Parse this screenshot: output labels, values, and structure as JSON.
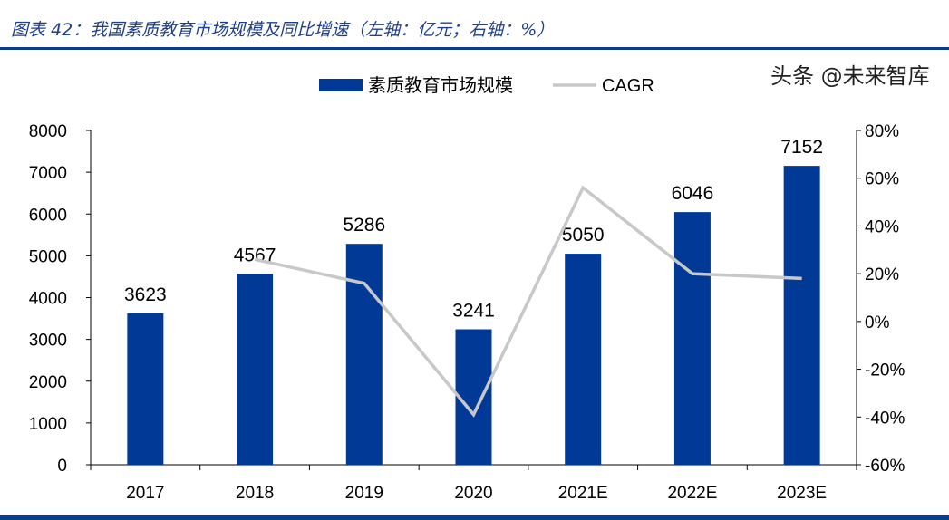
{
  "title": "图表 42：我国素质教育市场规模及同比增速（左轴：亿元；右轴：%）",
  "watermark": "头条 @未来智库",
  "chart_data": {
    "type": "bar+line",
    "categories": [
      "2017",
      "2018",
      "2019",
      "2020",
      "2021E",
      "2022E",
      "2023E"
    ],
    "series": [
      {
        "name": "素质教育市场规模",
        "type": "bar",
        "axis": "left",
        "color": "#003a96",
        "values": [
          3623,
          4567,
          5286,
          3241,
          5050,
          6046,
          7152
        ]
      },
      {
        "name": "CAGR",
        "type": "line",
        "axis": "right",
        "color": "#c8c8c8",
        "values": [
          null,
          26,
          16,
          -39,
          56,
          20,
          18
        ]
      }
    ],
    "left_axis": {
      "ylim": [
        0,
        8000
      ],
      "ticks": [
        "0",
        "1000",
        "2000",
        "3000",
        "4000",
        "5000",
        "6000",
        "7000",
        "8000"
      ]
    },
    "right_axis": {
      "ylim": [
        -60,
        80
      ],
      "ticks": [
        "-60%",
        "-40%",
        "-20%",
        "0%",
        "20%",
        "40%",
        "60%",
        "80%"
      ]
    },
    "legend": "top",
    "grid": false
  }
}
